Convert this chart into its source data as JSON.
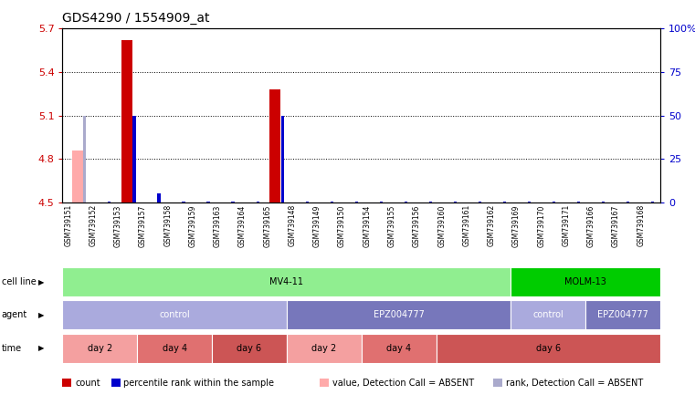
{
  "title": "GDS4290 / 1554909_at",
  "samples": [
    "GSM739151",
    "GSM739152",
    "GSM739153",
    "GSM739157",
    "GSM739158",
    "GSM739159",
    "GSM739163",
    "GSM739164",
    "GSM739165",
    "GSM739148",
    "GSM739149",
    "GSM739150",
    "GSM739154",
    "GSM739155",
    "GSM739156",
    "GSM739160",
    "GSM739161",
    "GSM739162",
    "GSM739169",
    "GSM739170",
    "GSM739171",
    "GSM739166",
    "GSM739167",
    "GSM739168"
  ],
  "count_values": [
    4.86,
    4.5,
    5.62,
    4.5,
    4.5,
    4.5,
    4.5,
    4.5,
    5.28,
    4.5,
    4.5,
    4.5,
    4.5,
    4.5,
    4.5,
    4.5,
    4.5,
    4.5,
    4.5,
    4.5,
    4.5,
    4.5,
    4.5,
    4.5
  ],
  "rank_values": [
    50,
    0,
    50,
    5,
    0,
    0,
    0,
    0,
    50,
    0,
    0,
    0,
    0,
    0,
    0,
    0,
    0,
    0,
    0,
    0,
    0,
    0,
    0,
    0
  ],
  "count_absent": [
    true,
    false,
    false,
    false,
    true,
    true,
    true,
    true,
    false,
    true,
    true,
    true,
    true,
    true,
    true,
    true,
    true,
    true,
    true,
    true,
    true,
    true,
    true,
    true
  ],
  "rank_absent": [
    true,
    false,
    false,
    false,
    false,
    false,
    false,
    false,
    false,
    false,
    false,
    false,
    false,
    false,
    false,
    false,
    false,
    false,
    false,
    false,
    false,
    false,
    false,
    false
  ],
  "ylim": [
    4.5,
    5.7
  ],
  "yticks_left": [
    4.5,
    4.8,
    5.1,
    5.4,
    5.7
  ],
  "yticks_right": [
    0,
    25,
    50,
    75,
    100
  ],
  "ylabel_left_color": "#cc0000",
  "ylabel_right_color": "#0000cc",
  "bar_color_present": "#cc0000",
  "bar_color_absent": "#ffaaaa",
  "rank_color_present": "#0000cc",
  "rank_color_absent": "#aaaacc",
  "cell_line_data": [
    {
      "label": "MV4-11",
      "start": 0,
      "end": 18,
      "color": "#90ee90"
    },
    {
      "label": "MOLM-13",
      "start": 18,
      "end": 24,
      "color": "#00cc00"
    }
  ],
  "agent_data": [
    {
      "label": "control",
      "start": 0,
      "end": 9,
      "color": "#aaaadd"
    },
    {
      "label": "EPZ004777",
      "start": 9,
      "end": 18,
      "color": "#7777bb"
    },
    {
      "label": "control",
      "start": 18,
      "end": 21,
      "color": "#aaaadd"
    },
    {
      "label": "EPZ004777",
      "start": 21,
      "end": 24,
      "color": "#7777bb"
    }
  ],
  "time_data": [
    {
      "label": "day 2",
      "start": 0,
      "end": 3,
      "color": "#f4a0a0"
    },
    {
      "label": "day 4",
      "start": 3,
      "end": 6,
      "color": "#e07070"
    },
    {
      "label": "day 6",
      "start": 6,
      "end": 9,
      "color": "#cc5555"
    },
    {
      "label": "day 2",
      "start": 9,
      "end": 12,
      "color": "#f4a0a0"
    },
    {
      "label": "day 4",
      "start": 12,
      "end": 15,
      "color": "#e07070"
    },
    {
      "label": "day 6",
      "start": 15,
      "end": 24,
      "color": "#cc5555"
    }
  ],
  "legend_items": [
    {
      "color": "#cc0000",
      "label": "count"
    },
    {
      "color": "#0000cc",
      "label": "percentile rank within the sample"
    },
    {
      "color": "#ffaaaa",
      "label": "value, Detection Call = ABSENT"
    },
    {
      "color": "#aaaacc",
      "label": "rank, Detection Call = ABSENT"
    }
  ],
  "bg_color": "#ffffff",
  "plot_bg_color": "#ffffff"
}
